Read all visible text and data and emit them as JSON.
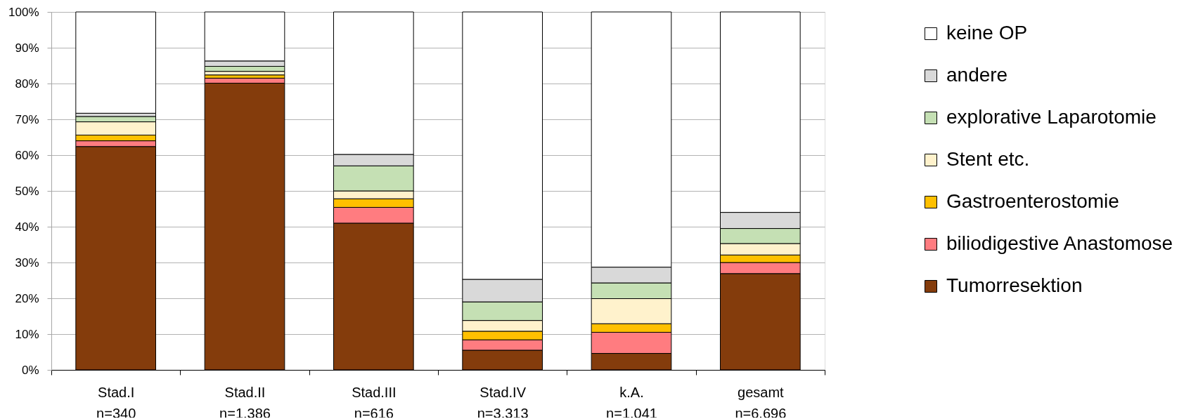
{
  "chart_data": {
    "type": "bar",
    "stacked": true,
    "categories": [
      "Stad.I\nn=340",
      "Stad.II\nn=1.386",
      "Stad.III\nn=616",
      "Stad.IV\nn=3.313",
      "k.A.\nn=1.041",
      "gesamt\nn=6.696"
    ],
    "series": [
      {
        "name": "Tumorresektion",
        "color": "#843c0c",
        "values": [
          62.4,
          80.1,
          41.0,
          5.5,
          4.6,
          26.9
        ]
      },
      {
        "name": "biliodigestive Anastomose",
        "color": "#ff7c80",
        "values": [
          1.6,
          1.4,
          4.4,
          2.9,
          5.9,
          3.1
        ]
      },
      {
        "name": "Gastroenterostomie",
        "color": "#ffc000",
        "values": [
          1.6,
          0.9,
          2.4,
          2.4,
          2.4,
          2.1
        ]
      },
      {
        "name": "Stent etc.",
        "color": "#fff2cc",
        "values": [
          3.7,
          1.0,
          2.2,
          3.0,
          7.0,
          3.2
        ]
      },
      {
        "name": "explorative Laparotomie",
        "color": "#c5e0b4",
        "values": [
          1.5,
          1.4,
          7.0,
          5.2,
          4.4,
          4.2
        ]
      },
      {
        "name": "andere",
        "color": "#d9d9d9",
        "values": [
          0.9,
          1.5,
          3.2,
          6.3,
          4.4,
          4.5
        ]
      },
      {
        "name": "keine OP",
        "color": "#ffffff",
        "values": [
          28.3,
          13.7,
          39.8,
          74.7,
          71.3,
          56.0
        ]
      }
    ],
    "ylim": [
      0,
      100
    ],
    "yticks": [
      {
        "value": 0,
        "label": "0%"
      },
      {
        "value": 10,
        "label": "10%"
      },
      {
        "value": 20,
        "label": "20%"
      },
      {
        "value": 30,
        "label": "30%"
      },
      {
        "value": 40,
        "label": "40%"
      },
      {
        "value": 50,
        "label": "50%"
      },
      {
        "value": 60,
        "label": "60%"
      },
      {
        "value": 70,
        "label": "70%"
      },
      {
        "value": 80,
        "label": "80%"
      },
      {
        "value": 90,
        "label": "90%"
      },
      {
        "value": 100,
        "label": "100%"
      }
    ],
    "grid": "y",
    "legend": "right"
  }
}
